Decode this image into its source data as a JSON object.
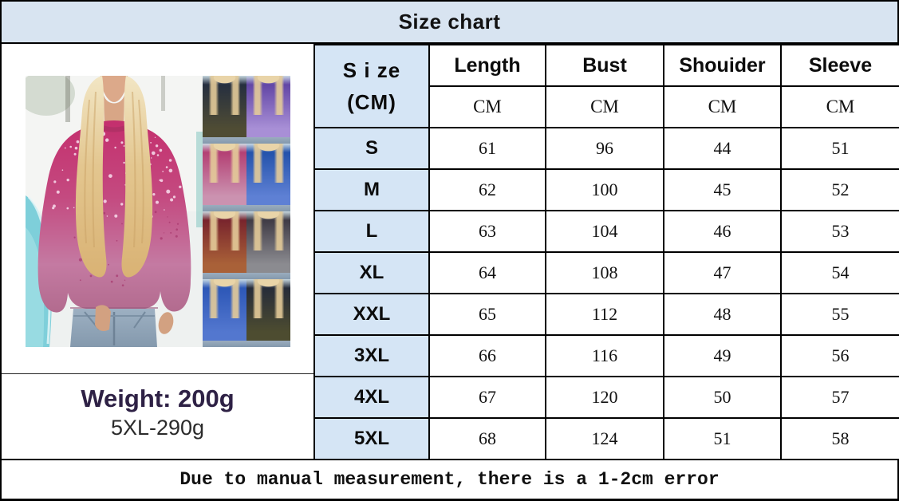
{
  "title": "Size chart",
  "product": {
    "weight_label": "Weight: 200g",
    "weight_sub": "5XL-290g",
    "variants": [
      {
        "name": "olive-navy",
        "top": "#232d40",
        "bottom": "#4f4c34"
      },
      {
        "name": "purple",
        "top": "#5d41a2",
        "bottom": "#a88fd6"
      },
      {
        "name": "rose-pink",
        "top": "#b23a6f",
        "bottom": "#cb92b0"
      },
      {
        "name": "royal-blue",
        "top": "#1f4fa8",
        "bottom": "#5e80d4"
      },
      {
        "name": "rust-brown",
        "top": "#75202c",
        "bottom": "#a96138"
      },
      {
        "name": "charcoal-gray",
        "top": "#3a3540",
        "bottom": "#8b8b90"
      },
      {
        "name": "cobalt-blue",
        "top": "#2a55b5",
        "bottom": "#5377cf"
      },
      {
        "name": "olive-green",
        "top": "#23293a",
        "bottom": "#4d4c30"
      }
    ]
  },
  "table": {
    "size_header": {
      "line1": "S i ze",
      "line2": "(CM)"
    },
    "columns": [
      "Length",
      "Bust",
      "Shouider",
      "Sleeve"
    ],
    "units": [
      "CM",
      "CM",
      "CM",
      "CM"
    ],
    "rows": [
      {
        "size": "S",
        "values": [
          "61",
          "96",
          "44",
          "51"
        ]
      },
      {
        "size": "M",
        "values": [
          "62",
          "100",
          "45",
          "52"
        ]
      },
      {
        "size": "L",
        "values": [
          "63",
          "104",
          "46",
          "53"
        ]
      },
      {
        "size": "XL",
        "values": [
          "64",
          "108",
          "47",
          "54"
        ]
      },
      {
        "size": "XXL",
        "values": [
          "65",
          "112",
          "48",
          "55"
        ]
      },
      {
        "size": "3XL",
        "values": [
          "66",
          "116",
          "49",
          "56"
        ]
      },
      {
        "size": "4XL",
        "values": [
          "67",
          "120",
          "50",
          "57"
        ]
      },
      {
        "size": "5XL",
        "values": [
          "68",
          "124",
          "51",
          "58"
        ]
      }
    ]
  },
  "footnote": "Due to manual measurement, there is a 1-2cm error",
  "colors": {
    "header_bg": "#d8e4f1",
    "size_col_bg": "#d5e5f5",
    "border": "#000000",
    "weight_text": "#2e2145",
    "sweater_top": "#c42f6d",
    "sweater_bottom": "#b26b8e"
  }
}
